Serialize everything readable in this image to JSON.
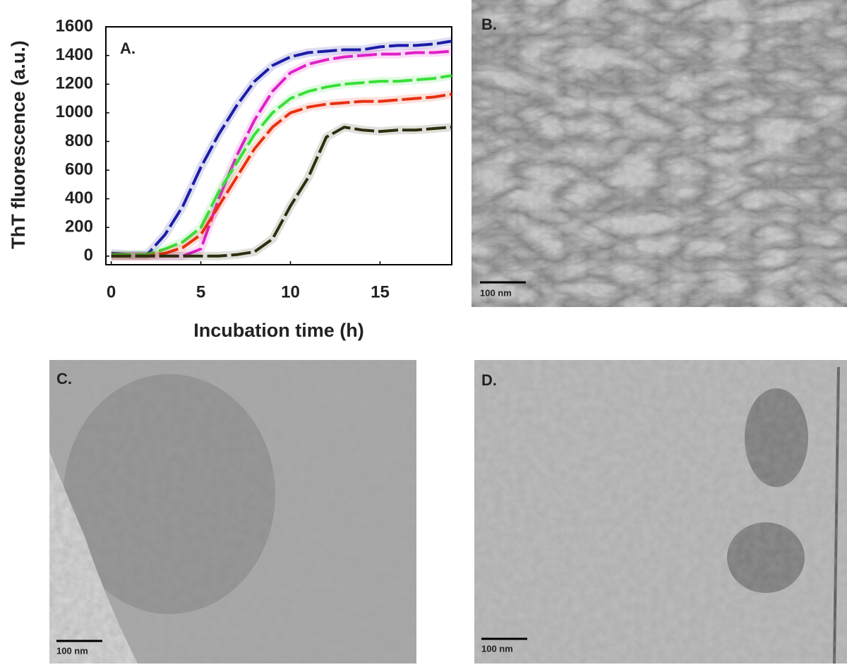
{
  "chart_data": {
    "type": "line",
    "panel_label": "A.",
    "xlabel": "Incubation time (h)",
    "ylabel": "ThT fluorescence (a.u.)",
    "x": [
      0,
      1,
      2,
      3,
      4,
      5,
      6,
      7,
      8,
      9,
      10,
      11,
      12,
      13,
      14,
      15,
      16,
      17,
      18,
      19
    ],
    "series": [
      {
        "color": "#1c1ca8",
        "values": [
          20,
          10,
          10,
          150,
          350,
          620,
          850,
          1050,
          1220,
          1330,
          1390,
          1420,
          1430,
          1440,
          1440,
          1460,
          1470,
          1470,
          1480,
          1500
        ]
      },
      {
        "color": "#e020c8",
        "values": [
          0,
          0,
          0,
          0,
          0,
          50,
          400,
          700,
          950,
          1150,
          1280,
          1340,
          1370,
          1390,
          1400,
          1410,
          1410,
          1420,
          1420,
          1430
        ]
      },
      {
        "color": "#38e038",
        "values": [
          10,
          10,
          10,
          50,
          100,
          200,
          450,
          650,
          850,
          1000,
          1100,
          1150,
          1180,
          1200,
          1210,
          1220,
          1220,
          1230,
          1240,
          1260
        ]
      },
      {
        "color": "#e83010",
        "values": [
          0,
          0,
          0,
          20,
          60,
          150,
          350,
          550,
          750,
          900,
          1000,
          1040,
          1060,
          1070,
          1080,
          1080,
          1090,
          1100,
          1110,
          1130
        ]
      },
      {
        "color": "#2e2e10",
        "values": [
          0,
          0,
          0,
          0,
          0,
          0,
          0,
          10,
          30,
          120,
          350,
          550,
          830,
          900,
          880,
          870,
          880,
          880,
          890,
          900
        ]
      }
    ],
    "xlim": [
      -0.3,
      19
    ],
    "ylim": [
      -60,
      1600
    ],
    "xticks": [
      0,
      5,
      10,
      15
    ],
    "yticks": [
      0,
      200,
      400,
      600,
      800,
      1000,
      1200,
      1400,
      1600
    ]
  },
  "micrographs": [
    {
      "label": "B.",
      "scale_bar": "100 nm"
    },
    {
      "label": "C.",
      "scale_bar": "100 nm"
    },
    {
      "label": "D.",
      "scale_bar": "100 nm"
    }
  ]
}
